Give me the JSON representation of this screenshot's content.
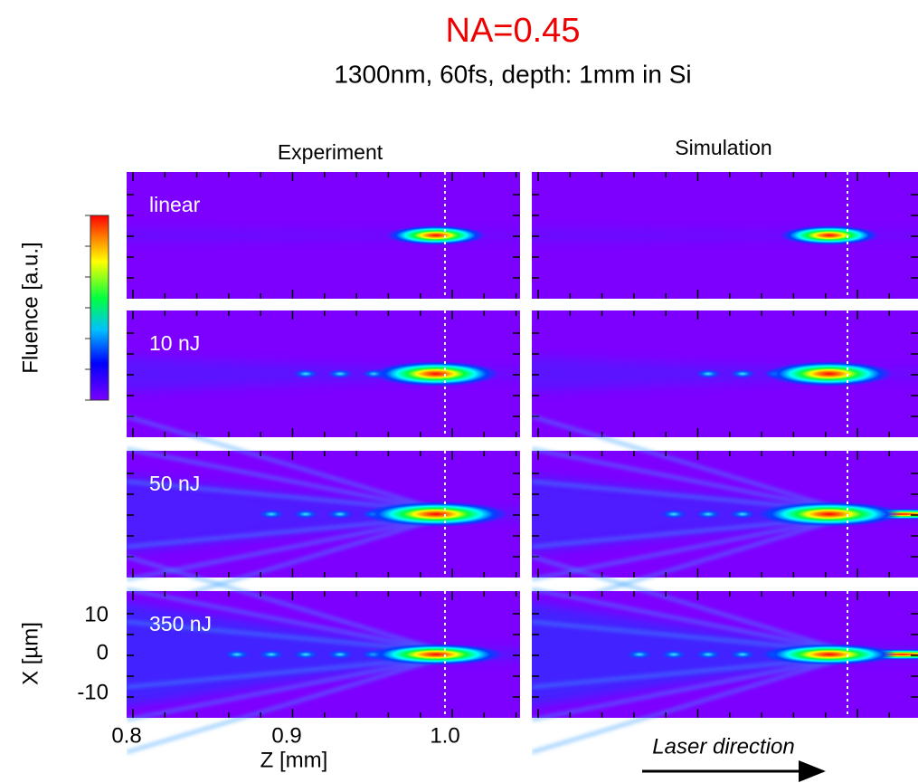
{
  "header": {
    "title": "NA=0.45",
    "subtitle": "1300nm, 60fs, depth: 1mm in Si"
  },
  "columns": [
    "Experiment",
    "Simulation"
  ],
  "rows": [
    "linear",
    "10 nJ",
    "50 nJ",
    "350 nJ"
  ],
  "colorbar": {
    "label": "Fluence [a.u.]"
  },
  "y_axis": {
    "label": "X [µm]",
    "ticks": [
      "10",
      "0",
      "-10"
    ]
  },
  "x_axis": {
    "label": "Z [mm]",
    "ticks": [
      "0.8",
      "0.9",
      "1.0"
    ]
  },
  "annotation": "Laser direction"
}
